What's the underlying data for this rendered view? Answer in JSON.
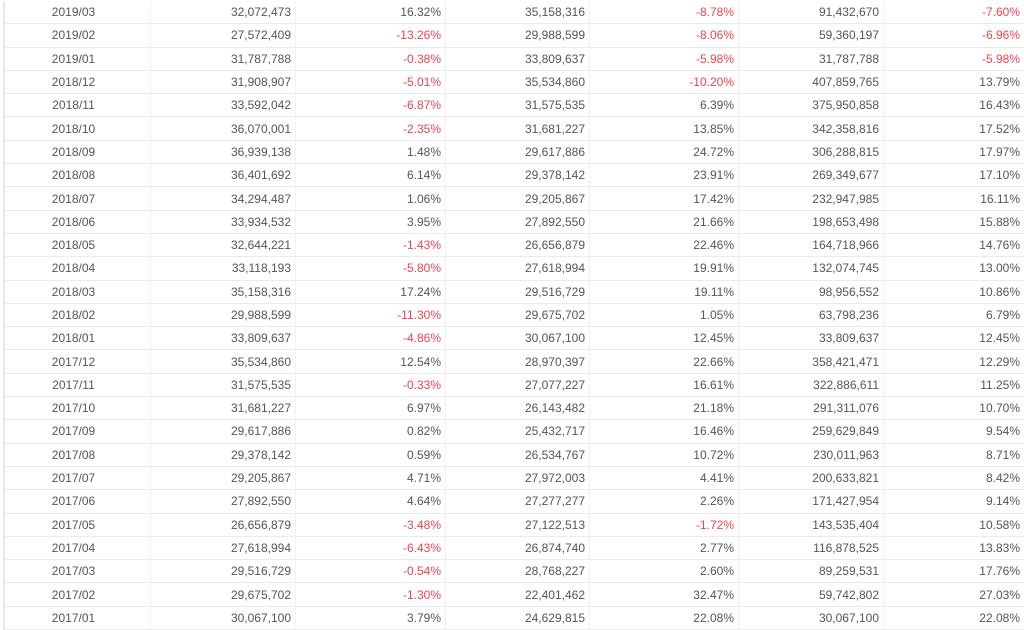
{
  "colors": {
    "negative": "#f0434f",
    "text": "#555555"
  },
  "rows": [
    [
      "2019/03",
      "32,072,473",
      "16.32%",
      "35,158,316",
      "-8.78%",
      "91,432,670",
      "-7.60%"
    ],
    [
      "2019/02",
      "27,572,409",
      "-13.26%",
      "29,988,599",
      "-8.06%",
      "59,360,197",
      "-6.96%"
    ],
    [
      "2019/01",
      "31,787,788",
      "-0.38%",
      "33,809,637",
      "-5.98%",
      "31,787,788",
      "-5.98%"
    ],
    [
      "2018/12",
      "31,908,907",
      "-5.01%",
      "35,534,860",
      "-10.20%",
      "407,859,765",
      "13.79%"
    ],
    [
      "2018/11",
      "33,592,042",
      "-6.87%",
      "31,575,535",
      "6.39%",
      "375,950,858",
      "16.43%"
    ],
    [
      "2018/10",
      "36,070,001",
      "-2.35%",
      "31,681,227",
      "13.85%",
      "342,358,816",
      "17.52%"
    ],
    [
      "2018/09",
      "36,939,138",
      "1.48%",
      "29,617,886",
      "24.72%",
      "306,288,815",
      "17.97%"
    ],
    [
      "2018/08",
      "36,401,692",
      "6.14%",
      "29,378,142",
      "23.91%",
      "269,349,677",
      "17.10%"
    ],
    [
      "2018/07",
      "34,294,487",
      "1.06%",
      "29,205,867",
      "17.42%",
      "232,947,985",
      "16.11%"
    ],
    [
      "2018/06",
      "33,934,532",
      "3.95%",
      "27,892,550",
      "21.66%",
      "198,653,498",
      "15.88%"
    ],
    [
      "2018/05",
      "32,644,221",
      "-1.43%",
      "26,656,879",
      "22.46%",
      "164,718,966",
      "14.76%"
    ],
    [
      "2018/04",
      "33,118,193",
      "-5.80%",
      "27,618,994",
      "19.91%",
      "132,074,745",
      "13.00%"
    ],
    [
      "2018/03",
      "35,158,316",
      "17.24%",
      "29,516,729",
      "19.11%",
      "98,956,552",
      "10.86%"
    ],
    [
      "2018/02",
      "29,988,599",
      "-11.30%",
      "29,675,702",
      "1.05%",
      "63,798,236",
      "6.79%"
    ],
    [
      "2018/01",
      "33,809,637",
      "-4.86%",
      "30,067,100",
      "12.45%",
      "33,809,637",
      "12.45%"
    ],
    [
      "2017/12",
      "35,534,860",
      "12.54%",
      "28,970,397",
      "22.66%",
      "358,421,471",
      "12.29%"
    ],
    [
      "2017/11",
      "31,575,535",
      "-0.33%",
      "27,077,227",
      "16.61%",
      "322,886,611",
      "11.25%"
    ],
    [
      "2017/10",
      "31,681,227",
      "6.97%",
      "26,143,482",
      "21.18%",
      "291,311,076",
      "10.70%"
    ],
    [
      "2017/09",
      "29,617,886",
      "0.82%",
      "25,432,717",
      "16.46%",
      "259,629,849",
      "9.54%"
    ],
    [
      "2017/08",
      "29,378,142",
      "0.59%",
      "26,534,767",
      "10.72%",
      "230,011,963",
      "8.71%"
    ],
    [
      "2017/07",
      "29,205,867",
      "4.71%",
      "27,972,003",
      "4.41%",
      "200,633,821",
      "8.42%"
    ],
    [
      "2017/06",
      "27,892,550",
      "4.64%",
      "27,277,277",
      "2.26%",
      "171,427,954",
      "9.14%"
    ],
    [
      "2017/05",
      "26,656,879",
      "-3.48%",
      "27,122,513",
      "-1.72%",
      "143,535,404",
      "10.58%"
    ],
    [
      "2017/04",
      "27,618,994",
      "-6.43%",
      "26,874,740",
      "2.77%",
      "116,878,525",
      "13.83%"
    ],
    [
      "2017/03",
      "29,516,729",
      "-0.54%",
      "28,768,227",
      "2.60%",
      "89,259,531",
      "17.76%"
    ],
    [
      "2017/02",
      "29,675,702",
      "-1.30%",
      "22,401,462",
      "32.47%",
      "59,742,802",
      "27.03%"
    ],
    [
      "2017/01",
      "30,067,100",
      "3.79%",
      "24,629,815",
      "22.08%",
      "30,067,100",
      "22.08%"
    ]
  ]
}
